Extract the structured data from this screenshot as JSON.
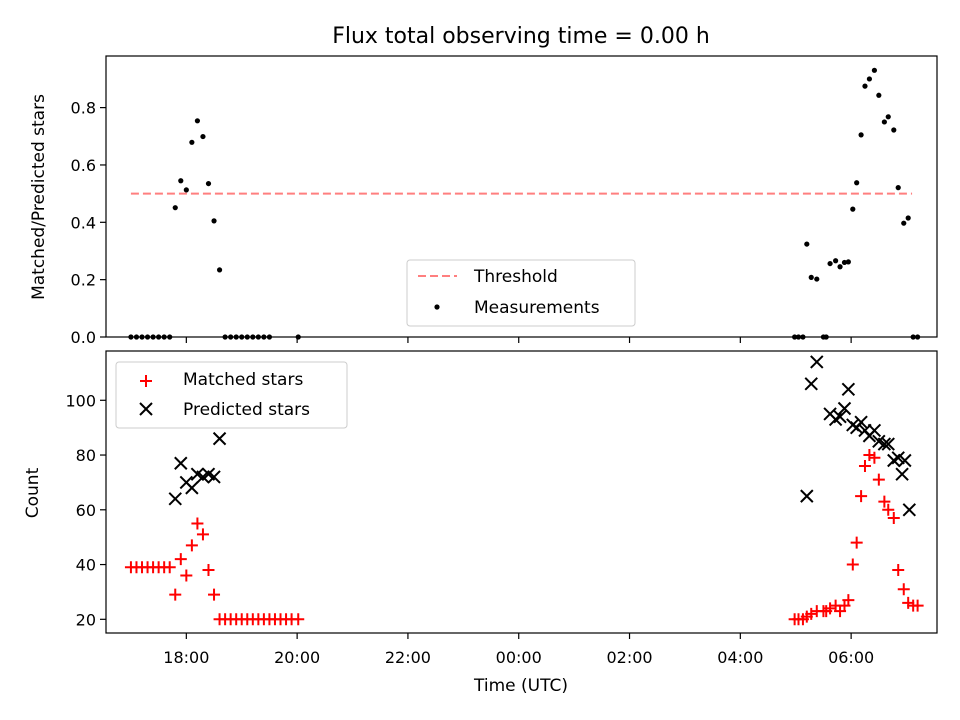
{
  "chart_data": [
    {
      "type": "scatter",
      "title": "Flux total observing time = 0.00 h",
      "xlabel": "",
      "ylabel": "Matched/Predicted stars",
      "xlim": [
        -7.45,
        7.55
      ],
      "ylim": [
        0.0,
        0.98
      ],
      "yticks": [
        0.0,
        0.2,
        0.4,
        0.6,
        0.8
      ],
      "ytick_labels": [
        "0.0",
        "0.2",
        "0.4",
        "0.6",
        "0.8"
      ],
      "legend_position": "lower-center",
      "threshold": {
        "name": "Threshold",
        "value": 0.5,
        "x_range": [
          -7.0,
          7.1
        ],
        "color": "#ff7f7f",
        "style": "dashed"
      },
      "series": [
        {
          "name": "Measurements",
          "marker": "dot",
          "color": "#000000",
          "points": [
            [
              -7.0,
              0
            ],
            [
              -6.9,
              0
            ],
            [
              -6.8,
              0
            ],
            [
              -6.7,
              0
            ],
            [
              -6.6,
              0
            ],
            [
              -6.5,
              0
            ],
            [
              -6.4,
              0
            ],
            [
              -6.3,
              0
            ],
            [
              -6.2,
              0.451
            ],
            [
              -6.1,
              0.545
            ],
            [
              -6.0,
              0.513
            ],
            [
              -5.9,
              0.679
            ],
            [
              -5.8,
              0.754
            ],
            [
              -5.7,
              0.699
            ],
            [
              -5.6,
              0.535
            ],
            [
              -5.5,
              0.405
            ],
            [
              -5.4,
              0.234
            ],
            [
              -5.3,
              0
            ],
            [
              -5.2,
              0
            ],
            [
              -5.1,
              0
            ],
            [
              -5.0,
              0
            ],
            [
              -4.9,
              0
            ],
            [
              -4.8,
              0
            ],
            [
              -4.7,
              0
            ],
            [
              -4.6,
              0
            ],
            [
              -4.5,
              0
            ],
            [
              -3.98,
              0
            ],
            [
              4.98,
              0
            ],
            [
              5.05,
              0
            ],
            [
              5.13,
              0
            ],
            [
              5.2,
              0.324
            ],
            [
              5.28,
              0.208
            ],
            [
              5.38,
              0.202
            ],
            [
              5.5,
              0
            ],
            [
              5.55,
              0
            ],
            [
              5.62,
              0.256
            ],
            [
              5.72,
              0.266
            ],
            [
              5.8,
              0.245
            ],
            [
              5.88,
              0.26
            ],
            [
              5.95,
              0.262
            ],
            [
              6.03,
              0.446
            ],
            [
              6.1,
              0.538
            ],
            [
              6.18,
              0.705
            ],
            [
              6.25,
              0.875
            ],
            [
              6.33,
              0.9
            ],
            [
              6.42,
              0.93
            ],
            [
              6.5,
              0.843
            ],
            [
              6.6,
              0.75
            ],
            [
              6.67,
              0.768
            ],
            [
              6.77,
              0.722
            ],
            [
              6.85,
              0.521
            ],
            [
              6.95,
              0.397
            ],
            [
              7.03,
              0.415
            ],
            [
              7.12,
              0
            ],
            [
              7.2,
              0
            ]
          ]
        }
      ]
    },
    {
      "type": "scatter",
      "title": "",
      "xlabel": "Time (UTC)",
      "ylabel": "Count",
      "xlim": [
        -7.45,
        7.55
      ],
      "ylim": [
        15.0,
        118.0
      ],
      "yticks": [
        20,
        40,
        60,
        80,
        100
      ],
      "ytick_labels": [
        "20",
        "40",
        "60",
        "80",
        "100"
      ],
      "xticks": [
        -6,
        -4,
        -2,
        0,
        2,
        4,
        6
      ],
      "xtick_labels": [
        "18:00",
        "20:00",
        "22:00",
        "00:00",
        "02:00",
        "04:00",
        "06:00"
      ],
      "legend_position": "upper-left",
      "series": [
        {
          "name": "Matched stars",
          "marker": "plus",
          "color": "#ff0000",
          "points": [
            [
              -7.0,
              39
            ],
            [
              -6.9,
              39
            ],
            [
              -6.8,
              39
            ],
            [
              -6.7,
              39
            ],
            [
              -6.6,
              39
            ],
            [
              -6.5,
              39
            ],
            [
              -6.4,
              39
            ],
            [
              -6.3,
              39
            ],
            [
              -6.2,
              29
            ],
            [
              -6.1,
              42
            ],
            [
              -6.0,
              36
            ],
            [
              -5.9,
              47
            ],
            [
              -5.8,
              55
            ],
            [
              -5.7,
              51
            ],
            [
              -5.6,
              38
            ],
            [
              -5.5,
              29
            ],
            [
              -5.4,
              20
            ],
            [
              -5.3,
              20
            ],
            [
              -5.2,
              20
            ],
            [
              -5.1,
              20
            ],
            [
              -5.0,
              20
            ],
            [
              -4.9,
              20
            ],
            [
              -4.8,
              20
            ],
            [
              -4.7,
              20
            ],
            [
              -4.6,
              20
            ],
            [
              -4.5,
              20
            ],
            [
              -4.4,
              20
            ],
            [
              -4.3,
              20
            ],
            [
              -4.2,
              20
            ],
            [
              -4.1,
              20
            ],
            [
              -3.98,
              20
            ],
            [
              4.98,
              20
            ],
            [
              5.05,
              20
            ],
            [
              5.13,
              20
            ],
            [
              5.2,
              21
            ],
            [
              5.28,
              22
            ],
            [
              5.38,
              23
            ],
            [
              5.5,
              23
            ],
            [
              5.55,
              23
            ],
            [
              5.62,
              24
            ],
            [
              5.72,
              25
            ],
            [
              5.8,
              23
            ],
            [
              5.88,
              25
            ],
            [
              5.95,
              27
            ],
            [
              6.03,
              40
            ],
            [
              6.1,
              48
            ],
            [
              6.18,
              65
            ],
            [
              6.25,
              76
            ],
            [
              6.33,
              80
            ],
            [
              6.42,
              79
            ],
            [
              6.5,
              71
            ],
            [
              6.6,
              63
            ],
            [
              6.67,
              60
            ],
            [
              6.77,
              57
            ],
            [
              6.85,
              38
            ],
            [
              6.95,
              31
            ],
            [
              7.03,
              26
            ],
            [
              7.12,
              25
            ],
            [
              7.2,
              25
            ]
          ]
        },
        {
          "name": "Predicted stars",
          "marker": "x",
          "color": "#000000",
          "points": [
            [
              -6.2,
              64
            ],
            [
              -6.1,
              77
            ],
            [
              -6.0,
              70
            ],
            [
              -5.9,
              68
            ],
            [
              -5.8,
              73
            ],
            [
              -5.7,
              72
            ],
            [
              -5.6,
              73
            ],
            [
              -5.5,
              72
            ],
            [
              -5.4,
              86
            ],
            [
              5.2,
              65
            ],
            [
              5.28,
              106
            ],
            [
              5.38,
              114
            ],
            [
              5.62,
              95
            ],
            [
              5.72,
              93
            ],
            [
              5.8,
              94
            ],
            [
              5.88,
              97
            ],
            [
              5.95,
              104
            ],
            [
              6.03,
              91
            ],
            [
              6.1,
              90
            ],
            [
              6.18,
              92
            ],
            [
              6.25,
              89
            ],
            [
              6.33,
              87
            ],
            [
              6.42,
              89
            ],
            [
              6.5,
              85
            ],
            [
              6.6,
              84
            ],
            [
              6.67,
              84
            ],
            [
              6.77,
              78
            ],
            [
              6.85,
              79
            ],
            [
              6.92,
              73
            ],
            [
              6.97,
              78
            ],
            [
              7.05,
              60
            ]
          ]
        }
      ]
    }
  ]
}
